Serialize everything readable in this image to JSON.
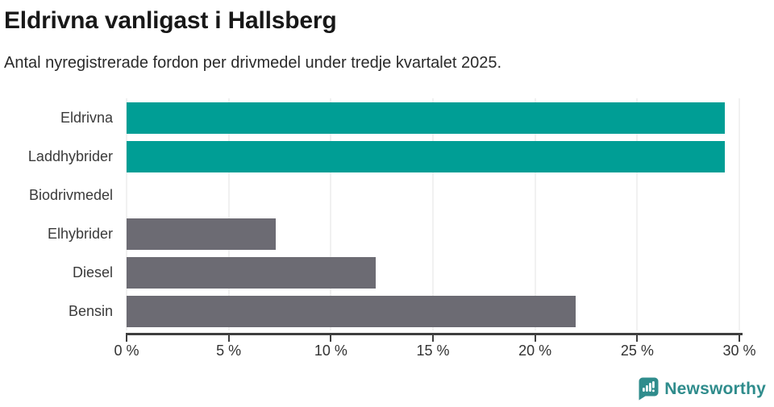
{
  "header": {
    "title": "Eldrivna vanligast i Hallsberg",
    "subtitle": "Antal nyregistrerade fordon per drivmedel under tredje kvartalet 2025."
  },
  "chart_data": {
    "type": "bar",
    "orientation": "horizontal",
    "title": "Eldrivna vanligast i Hallsberg",
    "subtitle": "Antal nyregistrerade fordon per drivmedel under tredje kvartalet 2025.",
    "categories": [
      "Eldrivna",
      "Laddhybrider",
      "Biodrivmedel",
      "Elhybrider",
      "Diesel",
      "Bensin"
    ],
    "values": [
      29.3,
      29.3,
      0,
      7.3,
      12.2,
      22.0
    ],
    "unit": "%",
    "xlabel": "",
    "ylabel": "",
    "xlim": [
      0,
      30
    ],
    "x_ticks": [
      0,
      5,
      10,
      15,
      20,
      25,
      30
    ],
    "x_tick_labels": [
      "0 %",
      "5 %",
      "10 %",
      "15 %",
      "20 %",
      "25 %",
      "30 %"
    ],
    "grid": "vertical",
    "bar_colors": [
      "#009e95",
      "#009e95",
      "#6c6b73",
      "#6c6b73",
      "#6c6b73",
      "#6c6b73"
    ],
    "highlight_color": "#009e95",
    "default_color": "#6c6b73",
    "gridline_color": "#e3e3e3",
    "axis_color": "#3f3f3f"
  },
  "footer": {
    "brand": "Newsworthy",
    "brand_color": "#2f8c8c"
  }
}
